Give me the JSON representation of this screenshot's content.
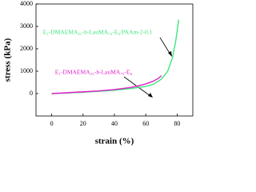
{
  "chart_data": {
    "type": "line",
    "x_label": "strain (%)",
    "y_label": "stress (kPa)",
    "xlim": [
      -10,
      90
    ],
    "xticks": [
      0,
      20,
      40,
      60,
      80
    ],
    "ylim": [
      -1000,
      4000
    ],
    "yticks": [
      0,
      1000,
      2000,
      3000,
      4000
    ],
    "series": [
      {
        "name": "E₁-DMAEMA₂₅-b-LauMA₇₅-E₆/PAAm-2-0.1",
        "color": "#3ee67c",
        "x": [
          0,
          10,
          20,
          30,
          40,
          50,
          60,
          65,
          70,
          74,
          77,
          79,
          80,
          81
        ],
        "values": [
          0,
          30,
          60,
          100,
          150,
          220,
          320,
          420,
          650,
          1000,
          1600,
          2300,
          2800,
          3300
        ]
      },
      {
        "name": "E₁-DMAEMA₂₅-b-LauMA₇₅-E₆",
        "color": "#e020c8",
        "x": [
          0,
          10,
          20,
          30,
          40,
          50,
          55,
          60,
          65,
          68,
          70
        ],
        "values": [
          0,
          40,
          80,
          120,
          180,
          270,
          340,
          430,
          560,
          680,
          800
        ]
      }
    ]
  }
}
